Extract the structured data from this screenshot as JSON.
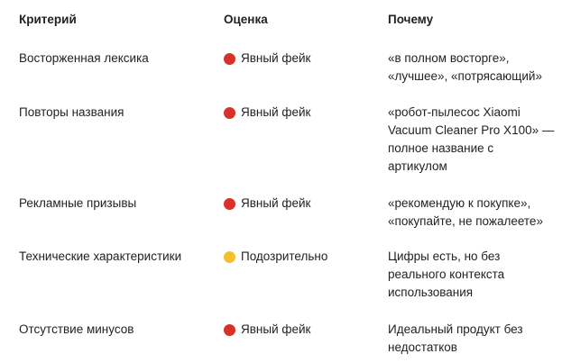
{
  "headers": {
    "criterion": "Критерий",
    "rating": "Оценка",
    "why": "Почему"
  },
  "colors": {
    "red": "#d9302a",
    "yellow": "#f5c02b"
  },
  "rows": [
    {
      "criterion": "Восторженная лексика",
      "icon": "red-circle-icon",
      "color": "red",
      "rating": "Явный фейк",
      "why": [
        "«в полном восторге»,",
        "«лучшее», «потрясающий»"
      ]
    },
    {
      "criterion": "Повторы названия",
      "icon": "red-circle-icon",
      "color": "red",
      "rating": "Явный фейк",
      "why": [
        "«робот-пылесос Xiaomi",
        "Vacuum Cleaner Pro X100» —",
        "полное название с",
        "артикулом"
      ]
    },
    {
      "criterion": "Рекламные призывы",
      "icon": "red-circle-icon",
      "color": "red",
      "rating": "Явный фейк",
      "why": [
        "«рекомендую к покупке»,",
        "«покупайте, не пожалеете»"
      ]
    },
    {
      "criterion": "Технические характеристики",
      "icon": "yellow-circle-icon",
      "color": "yellow",
      "rating": "Подозрительно",
      "why": [
        "Цифры есть, но без",
        "реального контекста",
        "использования"
      ]
    },
    {
      "criterion": "Отсутствие минусов",
      "icon": "red-circle-icon",
      "color": "red",
      "rating": "Явный фейк",
      "why": [
        "Идеальный продукт без",
        "недостатков"
      ]
    }
  ]
}
